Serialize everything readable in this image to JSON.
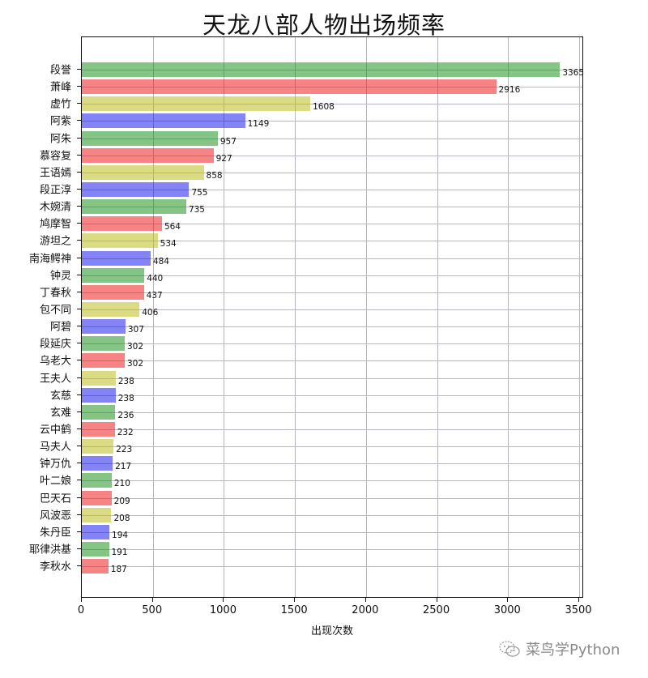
{
  "chart_data": {
    "type": "bar",
    "orientation": "horizontal",
    "title": "天龙八部人物出场频率",
    "xlabel": "出现次数",
    "ylabel": "",
    "xlim": [
      0,
      3530
    ],
    "xticks": [
      0,
      500,
      1000,
      1500,
      2000,
      2500,
      3000,
      3500
    ],
    "grid": true,
    "legend": null,
    "categories": [
      "段誉",
      "萧峰",
      "虚竹",
      "阿紫",
      "阿朱",
      "慕容复",
      "王语嫣",
      "段正淳",
      "木婉清",
      "鸠摩智",
      "游坦之",
      "南海鳄神",
      "钟灵",
      "丁春秋",
      "包不同",
      "阿碧",
      "段延庆",
      "乌老大",
      "王夫人",
      "玄慈",
      "玄难",
      "云中鹤",
      "马夫人",
      "钟万仇",
      "叶二娘",
      "巴天石",
      "风波恶",
      "朱丹臣",
      "耶律洪基",
      "李秋水"
    ],
    "values": [
      3365,
      2916,
      1608,
      1149,
      957,
      927,
      858,
      755,
      735,
      564,
      534,
      484,
      440,
      437,
      406,
      307,
      302,
      302,
      238,
      238,
      236,
      232,
      223,
      217,
      210,
      209,
      208,
      194,
      191,
      187
    ],
    "colors_cycle": [
      "#0a8a0a",
      "#ee0a0a",
      "#b8b80a",
      "#0a0aee"
    ],
    "data_labels": true
  },
  "watermark": {
    "text": "菜鸟学Python",
    "icon": "wechat-icon"
  }
}
